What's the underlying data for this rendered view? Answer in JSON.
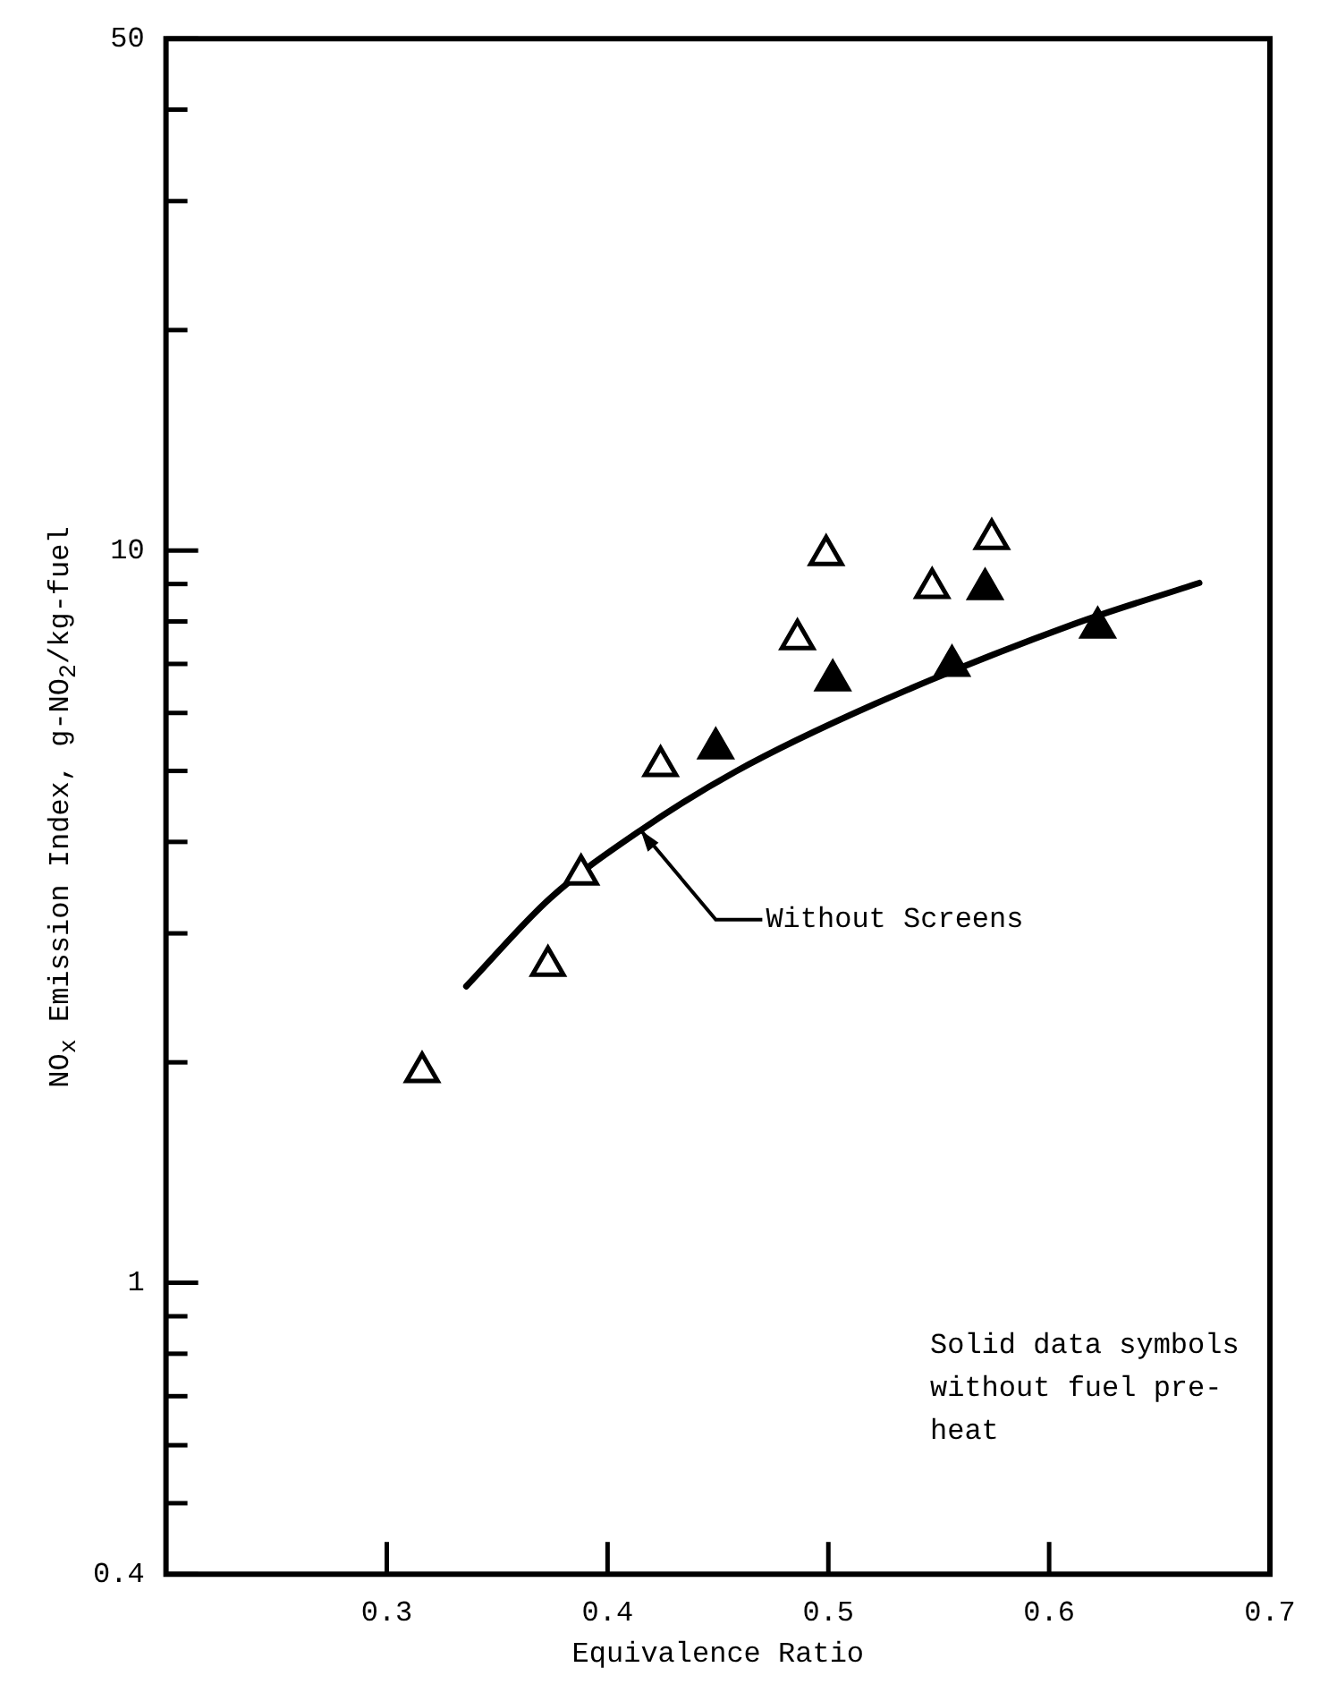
{
  "chart_data": {
    "type": "scatter",
    "xlabel": "Equivalence Ratio",
    "ylabel": "NO$_{x}$ Emission Index, g-NO$_{2}$/kg-fuel",
    "log": "y",
    "marker": "triangle",
    "xlim": [
      0.2,
      0.7
    ],
    "xticks": [
      0.3,
      0.4,
      0.5,
      0.6,
      0.7
    ],
    "ylim": [
      0.4,
      50
    ],
    "yticks": [
      0.4,
      {
        "value": 0.5,
        "label": null
      },
      {
        "value": 0.6,
        "label": null
      },
      {
        "value": 0.7,
        "label": null
      },
      {
        "value": 0.8,
        "label": null
      },
      {
        "value": 0.9,
        "label": null
      },
      1,
      {
        "value": 2,
        "label": null
      },
      {
        "value": 3,
        "label": null
      },
      {
        "value": 4,
        "label": null
      },
      {
        "value": 5,
        "label": null
      },
      {
        "value": 6,
        "label": null
      },
      {
        "value": 7,
        "label": null
      },
      {
        "value": 8,
        "label": null
      },
      {
        "value": 9,
        "label": null
      },
      10,
      {
        "value": 20,
        "label": null
      },
      {
        "value": 30,
        "label": null
      },
      {
        "value": 40,
        "label": null
      },
      50
    ],
    "annotations": [
      {
        "text": "Without Screens",
        "x": 0.415,
        "y": 4.15
      },
      "Solid data symbols without fuel pre-heat"
    ],
    "series": [
      {
        "color": "#ffffff",
        "x": [
          0.316,
          0.373,
          0.388,
          0.424,
          0.486,
          0.499,
          0.547,
          0.574
        ],
        "values": [
          1.94,
          2.71,
          3.61,
          5.08,
          7.57,
          9.86,
          8.89,
          10.37
        ]
      },
      {
        "color": "#000000",
        "x": [
          0.449,
          0.502,
          0.556,
          0.571,
          0.622
        ],
        "values": [
          5.37,
          6.65,
          6.96,
          8.86,
          7.85
        ]
      },
      {
        "type": "line",
        "color": "#000000",
        "line_style": "solid",
        "marker": "none",
        "x": [
          0.336,
          0.374,
          0.415,
          0.458,
          0.521,
          0.611,
          0.668
        ],
        "values": [
          2.54,
          3.35,
          4.15,
          4.99,
          6.17,
          7.93,
          9.03
        ]
      }
    ]
  }
}
